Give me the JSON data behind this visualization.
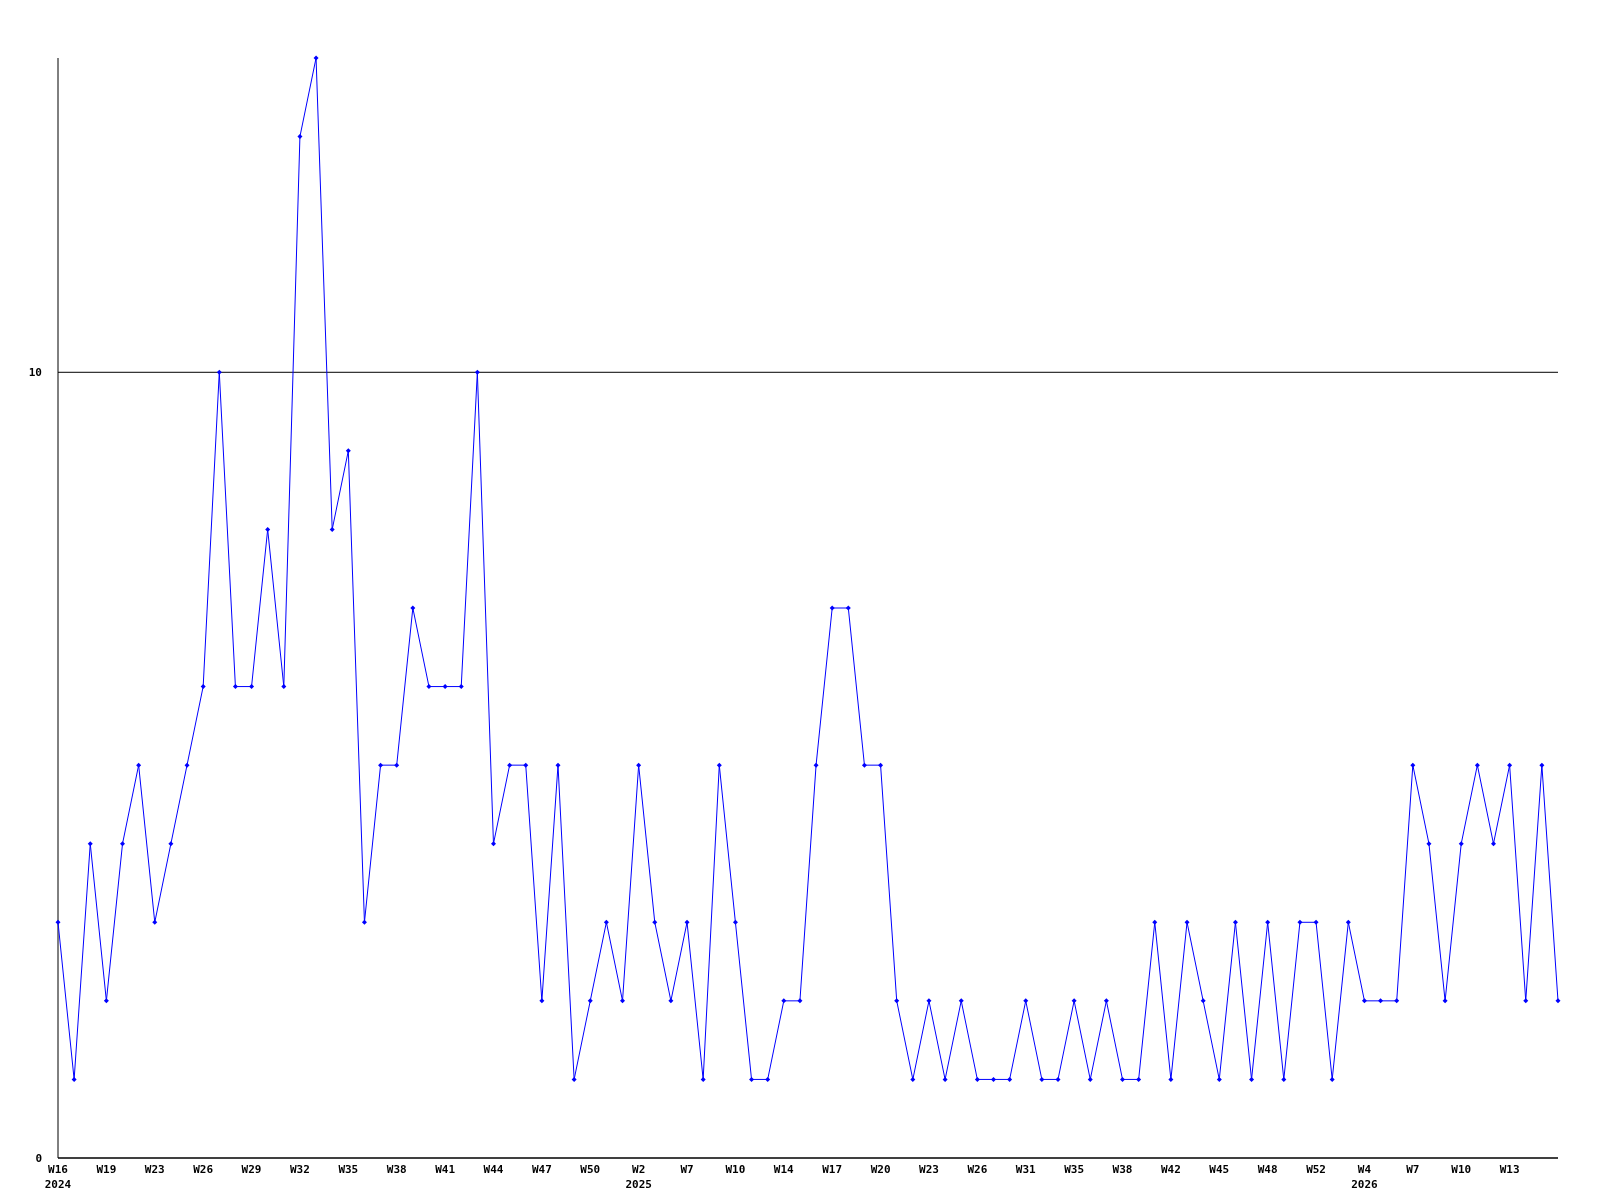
{
  "chart_data": {
    "type": "line",
    "categories": [
      "W16\n2024",
      null,
      null,
      "W19",
      null,
      null,
      "W23",
      null,
      null,
      "W26",
      null,
      null,
      "W29",
      null,
      null,
      "W32",
      null,
      null,
      "W35",
      null,
      null,
      "W38",
      null,
      null,
      "W41",
      null,
      null,
      "W44",
      null,
      null,
      "W47",
      null,
      null,
      "W50",
      null,
      null,
      "W2\n2025",
      null,
      null,
      "W7",
      null,
      null,
      "W10",
      null,
      null,
      "W14",
      null,
      null,
      "W17",
      null,
      null,
      "W20",
      null,
      null,
      "W23",
      null,
      null,
      "W26",
      null,
      null,
      "W31",
      null,
      null,
      "W35",
      null,
      null,
      "W38",
      null,
      null,
      "W42",
      null,
      null,
      "W45",
      null,
      null,
      "W48",
      null,
      null,
      "W52",
      null,
      null,
      "W4\n2026",
      null,
      null,
      "W7",
      null,
      null,
      "W10",
      null,
      null,
      "W13",
      null,
      null,
      null
    ],
    "series": [
      {
        "color": "#0000ff",
        "values": [
          3,
          1,
          4,
          2,
          4,
          5,
          3,
          4,
          5,
          6,
          10,
          6,
          6,
          8,
          6,
          13,
          14,
          8,
          9,
          3,
          5,
          5,
          7,
          6,
          6,
          6,
          10,
          4,
          5,
          5,
          2,
          5,
          1,
          2,
          3,
          2,
          5,
          3,
          2,
          3,
          1,
          5,
          3,
          1,
          1,
          2,
          2,
          5,
          7,
          7,
          5,
          5,
          2,
          1,
          2,
          1,
          2,
          1,
          1,
          1,
          2,
          1,
          1,
          2,
          1,
          2,
          1,
          1,
          3,
          1,
          3,
          2,
          1,
          3,
          1,
          3,
          1,
          3,
          3,
          1,
          3,
          2,
          2,
          2,
          5,
          4,
          2,
          4,
          5,
          4,
          5,
          2,
          5,
          2
        ]
      }
    ],
    "ylim": [
      0,
      14
    ],
    "yticks": [
      0,
      10
    ],
    "grid": "y",
    "marker": "diamond",
    "line_style": "solid"
  }
}
